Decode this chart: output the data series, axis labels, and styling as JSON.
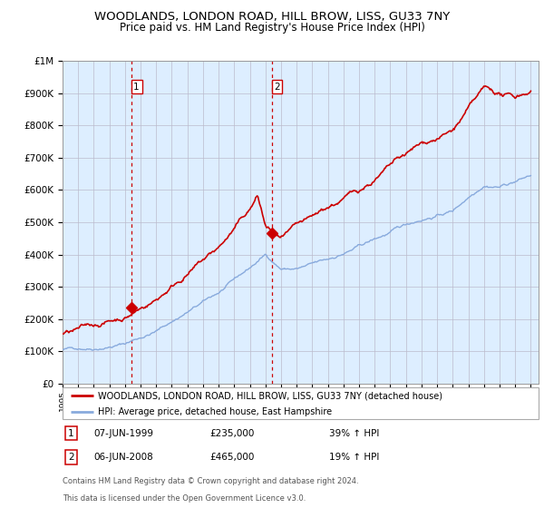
{
  "title": "WOODLANDS, LONDON ROAD, HILL BROW, LISS, GU33 7NY",
  "subtitle": "Price paid vs. HM Land Registry's House Price Index (HPI)",
  "legend_label_red": "WOODLANDS, LONDON ROAD, HILL BROW, LISS, GU33 7NY (detached house)",
  "legend_label_blue": "HPI: Average price, detached house, East Hampshire",
  "annotation1_date": "07-JUN-1999",
  "annotation1_price": "£235,000",
  "annotation1_hpi": "39% ↑ HPI",
  "annotation2_date": "06-JUN-2008",
  "annotation2_price": "£465,000",
  "annotation2_hpi": "19% ↑ HPI",
  "footer_line1": "Contains HM Land Registry data © Crown copyright and database right 2024.",
  "footer_line2": "This data is licensed under the Open Government Licence v3.0.",
  "sale1_x": 1999.44,
  "sale1_y": 235000,
  "sale2_x": 2008.44,
  "sale2_y": 465000,
  "ylim": [
    0,
    1000000
  ],
  "xlim": [
    1995.0,
    2025.5
  ],
  "red_color": "#cc0000",
  "blue_color": "#88aadd",
  "bg_color": "#ddeeff",
  "grid_color": "#bbbbcc",
  "vline_color": "#cc0000",
  "title_fontsize": 9.5,
  "subtitle_fontsize": 8.5
}
